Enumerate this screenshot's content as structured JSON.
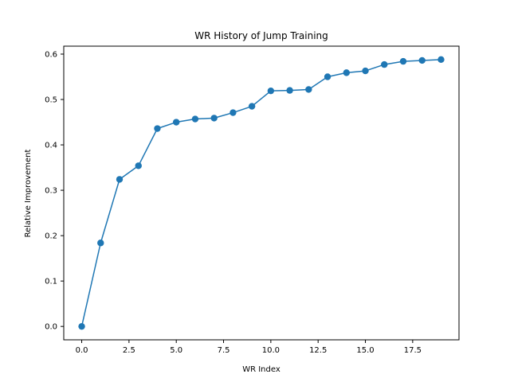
{
  "chart_data": {
    "type": "line",
    "title": "WR History of Jump Training",
    "xlabel": "WR Index",
    "ylabel": "Relative Improvement",
    "x": [
      0,
      1,
      2,
      3,
      4,
      5,
      6,
      7,
      8,
      9,
      10,
      11,
      12,
      13,
      14,
      15,
      16,
      17,
      18,
      19
    ],
    "y": [
      0.0,
      0.184,
      0.324,
      0.354,
      0.436,
      0.45,
      0.457,
      0.459,
      0.471,
      0.485,
      0.519,
      0.52,
      0.522,
      0.55,
      0.559,
      0.563,
      0.577,
      0.584,
      0.586,
      0.588
    ],
    "xlim": [
      -0.95,
      19.95
    ],
    "ylim": [
      -0.0295,
      0.6175
    ],
    "xticks": [
      0.0,
      2.5,
      5.0,
      7.5,
      10.0,
      12.5,
      15.0,
      17.5
    ],
    "xtick_labels": [
      "0.0",
      "2.5",
      "5.0",
      "7.5",
      "10.0",
      "12.5",
      "15.0",
      "17.5"
    ],
    "yticks": [
      0.0,
      0.1,
      0.2,
      0.3,
      0.4,
      0.5,
      0.6
    ],
    "ytick_labels": [
      "0.0",
      "0.1",
      "0.2",
      "0.3",
      "0.4",
      "0.5",
      "0.6"
    ],
    "grid": false,
    "colors": {
      "series": "#1f77b4",
      "axes": "#000000",
      "background": "#ffffff"
    },
    "markers": "circle"
  }
}
